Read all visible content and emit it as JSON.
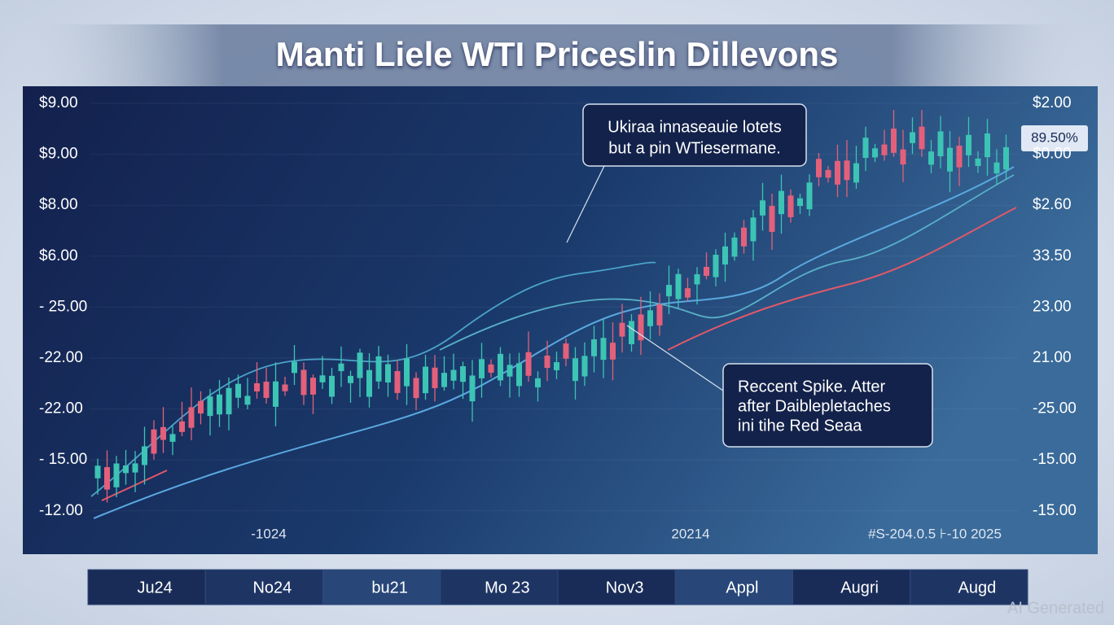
{
  "header": {
    "title": "Manti Liele WTI Priceslin Dillevons"
  },
  "left_axis": [
    "$9.00",
    "$9.00",
    "$8.00",
    "$6.00",
    "- 25.00",
    "-22.00",
    "-22.00",
    "- 15.00",
    "-12.00"
  ],
  "right_axis": [
    "$2.00",
    "$0.00",
    "$2.60",
    "33.50",
    "23.00",
    "21.00",
    "-25.00",
    "-15.00",
    "-15.00"
  ],
  "badge": "89.50%",
  "annotations": [
    {
      "lines": [
        "Ukiraa innaseauie lotets",
        "but a pin WTiesermane."
      ]
    },
    {
      "lines": [
        "Reccent Spike. Atter",
        "after Daiblepletaches",
        "ini tihe Red Seaa"
      ]
    }
  ],
  "inner_labels": [
    "-1024",
    "20214",
    "#S-204.0.5  ⊦-10 2025"
  ],
  "timeline": [
    "Ju24",
    "No24",
    "bu21",
    "Mo 23",
    "Nov3",
    "Appl",
    "Augri",
    "Augd"
  ],
  "watermark": "AI Generated"
}
